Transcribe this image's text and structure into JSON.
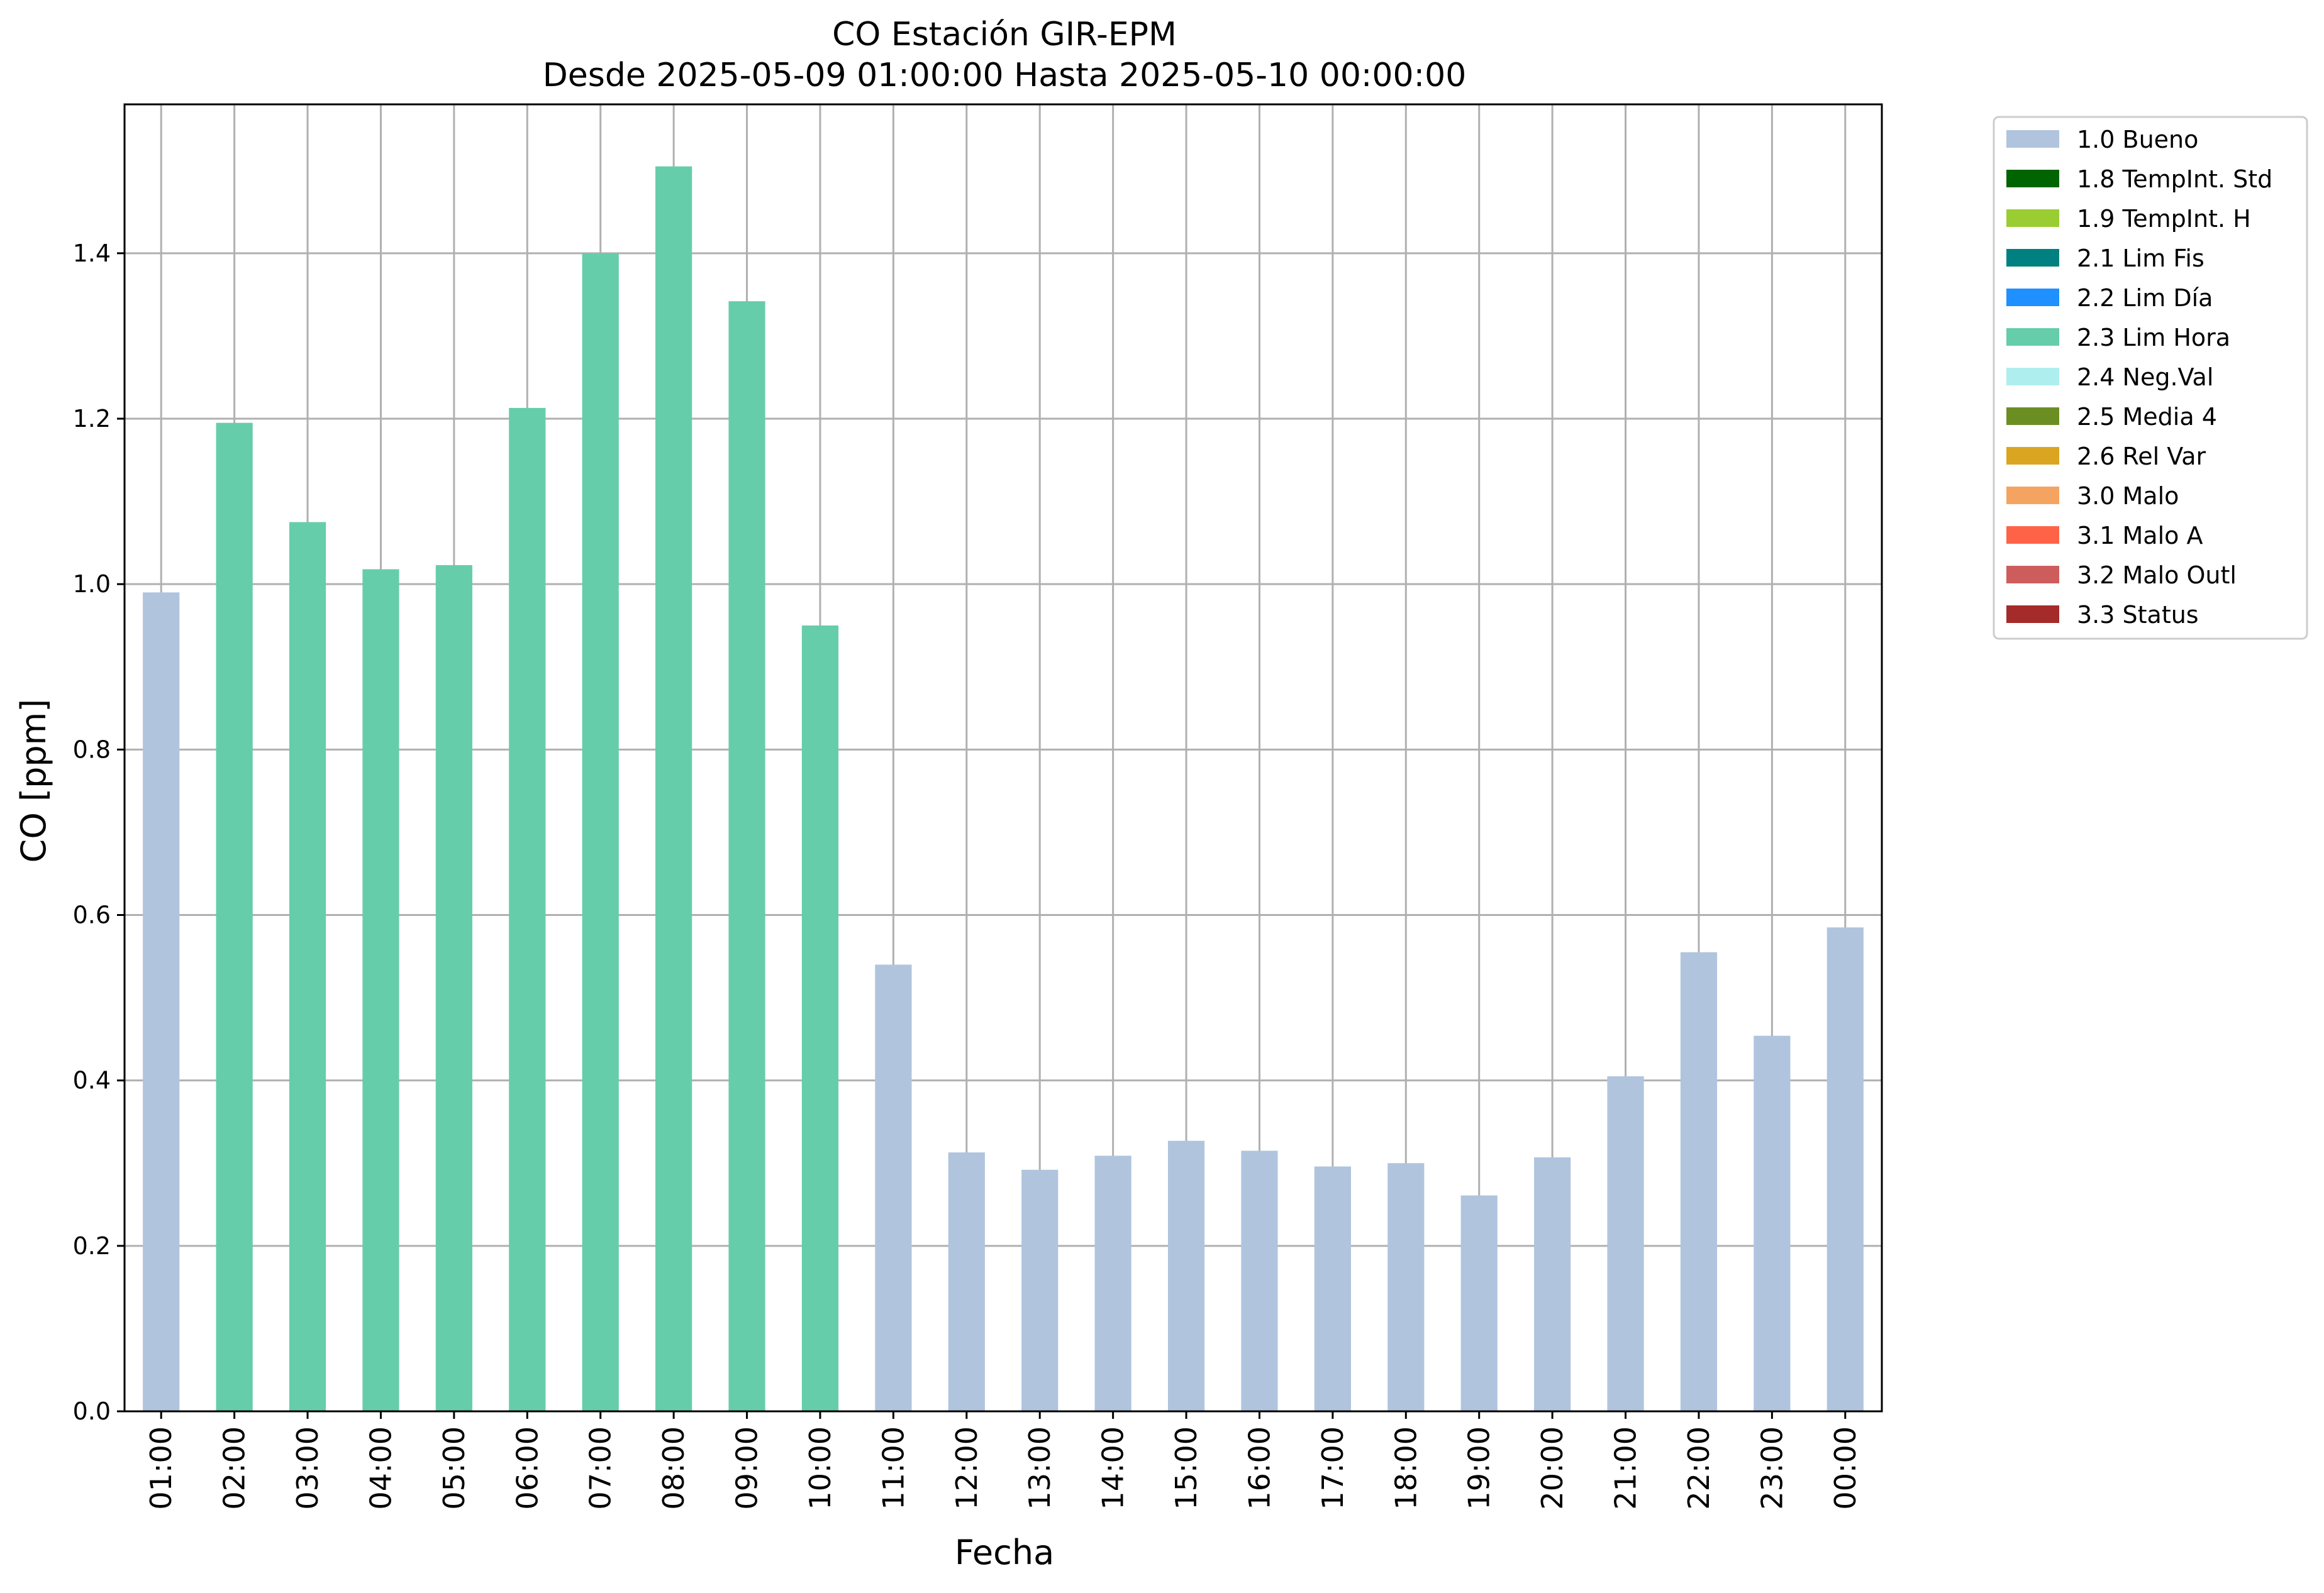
{
  "chart_data": {
    "type": "bar",
    "title": "CO Estación GIR-EPM",
    "subtitle": "Desde 2025-05-09 01:00:00 Hasta 2025-05-10 00:00:00",
    "xlabel": "Fecha",
    "ylabel": "CO [ppm]",
    "ylim": [
      0,
      1.58
    ],
    "yticks": [
      "0.0",
      "0.2",
      "0.4",
      "0.6",
      "0.8",
      "1.0",
      "1.2",
      "1.4"
    ],
    "grid": true,
    "legend_position": "outside-right-top",
    "categories": [
      "01:00",
      "02:00",
      "03:00",
      "04:00",
      "05:00",
      "06:00",
      "07:00",
      "08:00",
      "09:00",
      "10:00",
      "11:00",
      "12:00",
      "13:00",
      "14:00",
      "15:00",
      "16:00",
      "17:00",
      "18:00",
      "19:00",
      "20:00",
      "21:00",
      "22:00",
      "23:00",
      "00:00"
    ],
    "values": [
      0.99,
      1.195,
      1.075,
      1.018,
      1.023,
      1.213,
      1.4,
      1.505,
      1.342,
      0.95,
      0.54,
      0.313,
      0.292,
      0.309,
      0.327,
      0.315,
      0.296,
      0.3,
      0.261,
      0.307,
      0.405,
      0.555,
      0.454,
      0.585
    ],
    "flags": [
      "1.0 Bueno",
      "2.3 Lim Hora",
      "2.3 Lim Hora",
      "2.3 Lim Hora",
      "2.3 Lim Hora",
      "2.3 Lim Hora",
      "2.3 Lim Hora",
      "2.3 Lim Hora",
      "2.3 Lim Hora",
      "2.3 Lim Hora",
      "1.0 Bueno",
      "1.0 Bueno",
      "1.0 Bueno",
      "1.0 Bueno",
      "1.0 Bueno",
      "1.0 Bueno",
      "1.0 Bueno",
      "1.0 Bueno",
      "1.0 Bueno",
      "1.0 Bueno",
      "1.0 Bueno",
      "1.0 Bueno",
      "1.0 Bueno",
      "1.0 Bueno"
    ],
    "legend": [
      {
        "label": "1.0 Bueno",
        "color": "#b0c4de"
      },
      {
        "label": "1.8 TempInt. Std",
        "color": "#006400"
      },
      {
        "label": "1.9 TempInt. H",
        "color": "#9acd32"
      },
      {
        "label": "2.1 Lim Fis",
        "color": "#008080"
      },
      {
        "label": "2.2 Lim Día",
        "color": "#1e90ff"
      },
      {
        "label": "2.3 Lim Hora",
        "color": "#66cdaa"
      },
      {
        "label": "2.4 Neg.Val",
        "color": "#afeeee"
      },
      {
        "label": "2.5 Media 4",
        "color": "#6b8e23"
      },
      {
        "label": "2.6 Rel Var",
        "color": "#daa520"
      },
      {
        "label": "3.0 Malo",
        "color": "#f4a460"
      },
      {
        "label": "3.1 Malo A",
        "color": "#ff6347"
      },
      {
        "label": "3.2 Malo Outl",
        "color": "#cd5c5c"
      },
      {
        "label": "3.3 Status",
        "color": "#a52a2a"
      }
    ]
  }
}
